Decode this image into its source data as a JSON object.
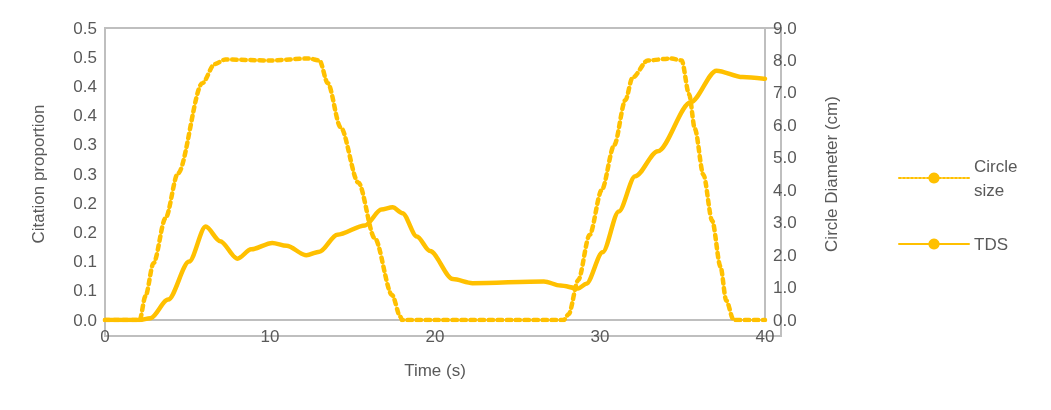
{
  "chart_data": {
    "type": "line",
    "xlabel": "Time (s)",
    "ylabel": "Citation proportion",
    "y2label": "Circle Diameter (cm)",
    "xlim": [
      0,
      40
    ],
    "xticks": [
      0,
      10,
      20,
      30,
      40
    ],
    "ylim": [
      0,
      0.5
    ],
    "yticks": [
      {
        "value": 0,
        "label": "0.0"
      },
      {
        "value": 0.05,
        "label": "0.1"
      },
      {
        "value": 0.1,
        "label": "0.1"
      },
      {
        "value": 0.15,
        "label": "0.2"
      },
      {
        "value": 0.2,
        "label": "0.2"
      },
      {
        "value": 0.25,
        "label": "0.3"
      },
      {
        "value": 0.3,
        "label": "0.3"
      },
      {
        "value": 0.35,
        "label": "0.4"
      },
      {
        "value": 0.4,
        "label": "0.4"
      },
      {
        "value": 0.45,
        "label": "0.5"
      },
      {
        "value": 0.5,
        "label": "0.5"
      }
    ],
    "y2lim": [
      0,
      9
    ],
    "y2ticks": [
      {
        "value": 0,
        "label": "0.0"
      },
      {
        "value": 1,
        "label": "1.0"
      },
      {
        "value": 2,
        "label": "2.0"
      },
      {
        "value": 3,
        "label": "3.0"
      },
      {
        "value": 4,
        "label": "4.0"
      },
      {
        "value": 5,
        "label": "5.0"
      },
      {
        "value": 6,
        "label": "6.0"
      },
      {
        "value": 7,
        "label": "7.0"
      },
      {
        "value": 8,
        "label": "8.0"
      },
      {
        "value": 9,
        "label": "9.0"
      }
    ],
    "grid": false,
    "legend": "right",
    "marker": "none",
    "series": [
      {
        "name": "Circle size",
        "color": "#ffc000",
        "axis": "y2",
        "line_style": "dotted",
        "x": [
          0,
          1,
          2.1,
          2.45,
          2.94,
          3.67,
          4.42,
          5.9,
          6.65,
          7.3,
          10,
          12.37,
          13.0,
          13.5,
          14.28,
          15.36,
          16.35,
          17.4,
          17.9,
          18,
          20,
          25,
          27.8,
          28.1,
          28.68,
          29.37,
          30.1,
          30.87,
          31.54,
          31.97,
          32.9,
          34.3,
          34.95,
          35.4,
          35.75,
          36.27,
          36.8,
          37.3,
          37.65,
          38.1,
          40
        ],
        "values": [
          0,
          0,
          0,
          0.73,
          1.75,
          3.14,
          4.52,
          7.3,
          7.89,
          8.03,
          8.0,
          8.06,
          8.0,
          7.3,
          5.94,
          4.23,
          2.52,
          0.77,
          0.1,
          0,
          0,
          0,
          0,
          0.18,
          1.23,
          2.62,
          4.0,
          5.4,
          6.78,
          7.47,
          8.0,
          8.06,
          8.0,
          6.96,
          5.89,
          4.47,
          3.06,
          1.65,
          0.6,
          0,
          0
        ]
      },
      {
        "name": "TDS",
        "color": "#ffc000",
        "line_style": "solid",
        "x": [
          0,
          2.1,
          2.74,
          3.83,
          5.1,
          6.1,
          6.98,
          8.03,
          8.86,
          10.14,
          11.0,
          12.2,
          13.0,
          14.08,
          15.76,
          16.75,
          17.43,
          18.03,
          18.9,
          19.7,
          21.08,
          22.27,
          26.6,
          27.6,
          28.68,
          29.17,
          30.16,
          31.14,
          32.13,
          33.5,
          35.5,
          37.06,
          38.64,
          40
        ],
        "values": [
          0,
          0,
          0.003,
          0.035,
          0.1,
          0.16,
          0.135,
          0.105,
          0.121,
          0.132,
          0.127,
          0.111,
          0.117,
          0.146,
          0.162,
          0.189,
          0.193,
          0.183,
          0.143,
          0.118,
          0.07,
          0.063,
          0.066,
          0.059,
          0.054,
          0.062,
          0.116,
          0.186,
          0.246,
          0.289,
          0.373,
          0.427,
          0.416,
          0.413
        ]
      }
    ]
  }
}
